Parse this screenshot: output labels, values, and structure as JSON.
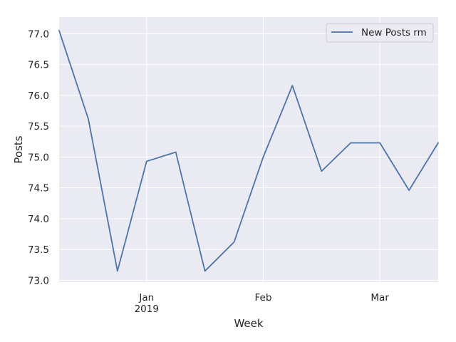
{
  "chart_data": {
    "type": "line",
    "title": "",
    "xlabel": "Week",
    "ylabel": "Posts",
    "x": [
      "2018-12-09",
      "2018-12-16",
      "2018-12-23",
      "2018-12-30",
      "2019-01-06",
      "2019-01-13",
      "2019-01-20",
      "2019-01-27",
      "2019-02-03",
      "2019-02-10",
      "2019-02-17",
      "2019-02-24",
      "2019-03-03",
      "2019-03-10"
    ],
    "xlim": [
      "2018-12-09",
      "2019-03-10"
    ],
    "x_ticks": [
      {
        "date": "2018-12-30",
        "label": "Jan",
        "sublabel": "2019"
      },
      {
        "date": "2019-01-27",
        "label": "Feb",
        "sublabel": ""
      },
      {
        "date": "2019-02-24",
        "label": "Mar",
        "sublabel": ""
      }
    ],
    "series": [
      {
        "name": "New Posts rm",
        "color": "#4c72b0",
        "values": [
          77.05,
          75.62,
          73.15,
          74.93,
          75.08,
          73.15,
          73.62,
          75.0,
          76.16,
          74.77,
          75.23,
          75.23,
          74.46,
          75.23
        ]
      }
    ],
    "ylim": [
      72.97,
      77.27
    ],
    "y_ticks": [
      "73.0",
      "73.5",
      "74.0",
      "74.5",
      "75.0",
      "75.5",
      "76.0",
      "76.5",
      "77.0"
    ],
    "grid": true,
    "legend_position": "top-right",
    "background": "#eaeaf2",
    "grid_color": "#ffffff"
  }
}
